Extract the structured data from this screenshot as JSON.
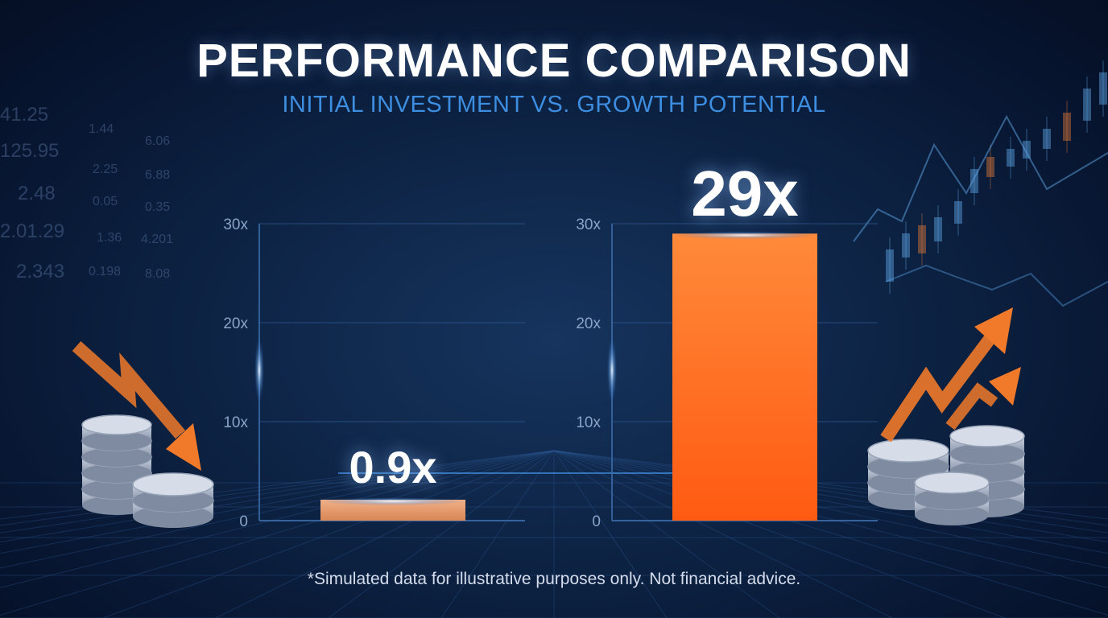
{
  "title": "PERFORMANCE COMPARISON",
  "subtitle": "INITIAL INVESTMENT VS. GROWTH POTENTIAL",
  "footnote": "*Simulated data for illustrative purposes only. Not financial advice.",
  "colors": {
    "bar_left": "#e59a6c",
    "bar_right": "#ff6a1e",
    "arrow": "#f07a2a",
    "subtitle": "#3d8ee0",
    "axis": "#3a6aa8"
  },
  "decor": {
    "ticker_values": [
      "41.25",
      "125.95",
      "2.48",
      "2.01.29",
      "2.343",
      "1.44",
      "2.25",
      "0.05",
      "1.36",
      "0.198",
      "6.06",
      "6.88",
      "0.35",
      "4.201",
      "8.08"
    ],
    "left_icons": [
      "coin-stack-icon",
      "trend-down-arrow-icon"
    ],
    "right_icons": [
      "coin-stack-icon",
      "trend-up-arrow-icon"
    ]
  },
  "chart_data": [
    {
      "type": "bar",
      "categories": [
        ""
      ],
      "values": [
        0.9
      ],
      "value_labels": [
        "0.9x"
      ],
      "y_ticks": [
        "0",
        "10x",
        "20x",
        "30x"
      ],
      "tick_values": [
        0,
        10,
        20,
        30
      ],
      "ylim": [
        0,
        30
      ],
      "grid": true
    },
    {
      "type": "bar",
      "categories": [
        ""
      ],
      "values": [
        29
      ],
      "value_labels": [
        "29x"
      ],
      "y_ticks": [
        "0",
        "10x",
        "20x",
        "30x"
      ],
      "tick_values": [
        0,
        10,
        20,
        30
      ],
      "ylim": [
        0,
        30
      ],
      "grid": true
    }
  ]
}
